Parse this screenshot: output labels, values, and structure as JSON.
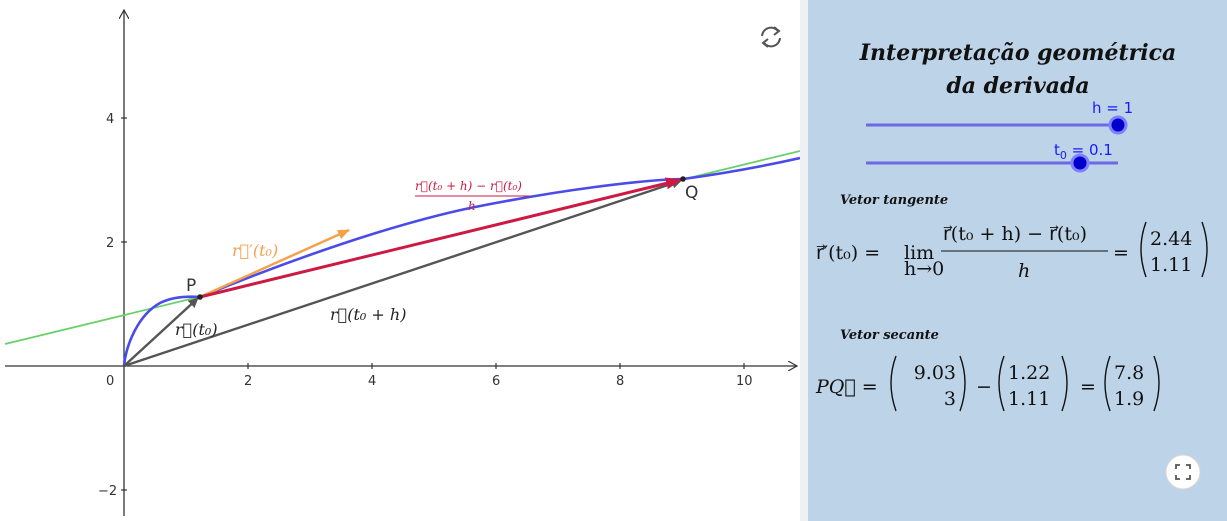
{
  "graph": {
    "axes": {
      "x_ticks": [
        "0",
        "2",
        "4",
        "6",
        "8",
        "10"
      ],
      "y_ticks": [
        "4",
        "2",
        "−2"
      ]
    },
    "points": {
      "P": "P",
      "Q": "Q"
    },
    "labels": {
      "tangent": "r⃗′(t₀)",
      "secant_num": "r⃗(t₀ + h) − r⃗(t₀)",
      "secant_den": "h",
      "rt0": "r⃗(t₀)",
      "rt0h": "r⃗(t₀ + h)"
    },
    "colors": {
      "curve": "#4b4bea",
      "tangent_line": "#6ad06a",
      "tangent_vector": "#f6a04a",
      "secant_vector": "#cc1a44",
      "position_vectors": "#555555"
    },
    "icons": {
      "refresh": "refresh-icon"
    }
  },
  "panel": {
    "title_line1": "Interpretação geométrica",
    "title_line2": "da derivada",
    "slider_h": {
      "label": "h = 1",
      "value": 1,
      "min": 0,
      "max": 1
    },
    "slider_t0": {
      "label_base": "t",
      "label_sub": "0",
      "label_rest": " = 0.1",
      "value": 0.1,
      "min": -1,
      "max": 1.5
    },
    "tangent_section": "Vetor tangente",
    "tangent_eq": {
      "lhs": "r⃗′(t₀) =",
      "lim": "lim",
      "lim_sub": "h→0",
      "frac_num": "r⃗(t₀ + h) − r⃗(t₀)",
      "frac_den": "h",
      "eq": "=",
      "vec": [
        "2.44",
        "1.11"
      ]
    },
    "secant_section": "Vetor secante",
    "secant_eq": {
      "lhs": "PQ⃗ =",
      "v1": [
        "9.03",
        "3"
      ],
      "minus": "−",
      "v2": [
        "1.22",
        "1.11"
      ],
      "eq": "=",
      "v3": [
        "7.8",
        "1.9"
      ]
    },
    "icons": {
      "fullscreen": "fullscreen-icon"
    }
  }
}
